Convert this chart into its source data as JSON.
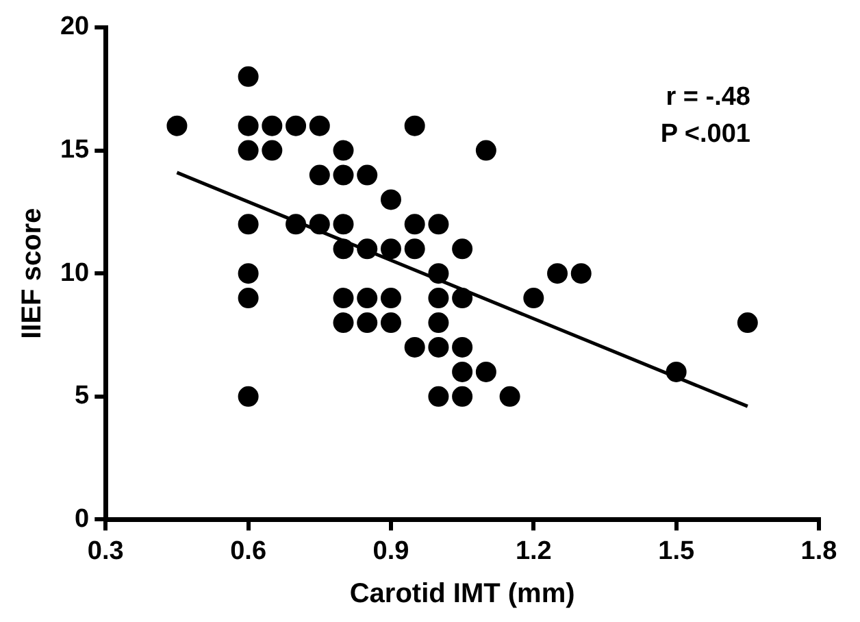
{
  "chart_data": {
    "type": "scatter",
    "xlabel": "Carotid IMT (mm)",
    "ylabel": "IIEF score",
    "xlim": [
      0.3,
      1.8
    ],
    "xticks": [
      0.3,
      0.6,
      0.9,
      1.2,
      1.5,
      1.8
    ],
    "ylim": [
      0,
      20
    ],
    "yticks": [
      0,
      5,
      10,
      15,
      20
    ],
    "grid": false,
    "legend": false,
    "marker": "circle",
    "annotations": [
      "r = -.48",
      "P <.001"
    ],
    "series": [
      {
        "color": "#000000",
        "x": [
          0.45,
          0.6,
          0.6,
          0.6,
          0.6,
          0.6,
          0.6,
          0.6,
          0.65,
          0.65,
          0.7,
          0.7,
          0.75,
          0.75,
          0.75,
          0.8,
          0.8,
          0.8,
          0.8,
          0.8,
          0.8,
          0.85,
          0.85,
          0.85,
          0.85,
          0.9,
          0.9,
          0.9,
          0.9,
          0.95,
          0.95,
          0.95,
          0.95,
          1.0,
          1.0,
          1.0,
          1.0,
          1.0,
          1.0,
          1.05,
          1.05,
          1.05,
          1.05,
          1.05,
          1.1,
          1.1,
          1.15,
          1.2,
          1.25,
          1.3,
          1.5,
          1.65
        ],
        "values": [
          16,
          18,
          16,
          15,
          12,
          10,
          9,
          5,
          16,
          15,
          16,
          12,
          16,
          14,
          12,
          15,
          14,
          12,
          11,
          9,
          8,
          14,
          11,
          9,
          8,
          13,
          11,
          9,
          8,
          16,
          12,
          11,
          7,
          12,
          10,
          9,
          8,
          7,
          5,
          11,
          9,
          7,
          6,
          5,
          15,
          6,
          5,
          9,
          10,
          10,
          6,
          8
        ]
      },
      {
        "type": "line",
        "color": "#000000",
        "marker": "none",
        "x": [
          0.45,
          1.65
        ],
        "values": [
          14.1,
          4.6
        ]
      }
    ]
  }
}
